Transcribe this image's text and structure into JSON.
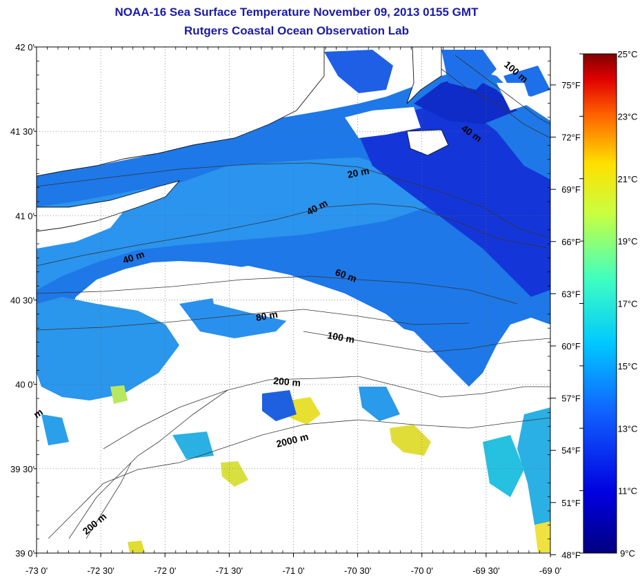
{
  "header": {
    "title": "NOAA-16 Sea Surface Temperature November 09, 2013 0155 GMT",
    "subtitle": "Rutgers Coastal Ocean Observation Lab"
  },
  "map": {
    "lon_ticks": [
      "-73 0'",
      "-72 30'",
      "-72 0'",
      "-71 30'",
      "-71 0'",
      "-70 30'",
      "-70 0'",
      "-69 30'",
      "-69 0'"
    ],
    "lat_ticks": [
      "42 0'",
      "41 30'",
      "41 0'",
      "40 30'",
      "40 0'",
      "39 30'",
      "39 0'"
    ],
    "lon_range": [
      -73,
      -69
    ],
    "lat_range": [
      39,
      42
    ],
    "contour_labels": [
      "20 m",
      "40 m",
      "40 m",
      "40 m",
      "60 m",
      "80 m",
      "100 m",
      "200 m",
      "2000 m",
      "200 m",
      "100 m",
      "m"
    ],
    "colors": {
      "land": "#ffffff",
      "cold": "#1030d8",
      "mid": "#1e78e8",
      "warm": "#22b8e0",
      "hot": "#e8e030"
    }
  },
  "colorbar": {
    "celsius": [
      "25°C",
      "23°C",
      "21°C",
      "19°C",
      "17°C",
      "15°C",
      "13°C",
      "11°C",
      "9°C"
    ],
    "fahrenheit": [
      "75°F",
      "72°F",
      "69°F",
      "66°F",
      "63°F",
      "60°F",
      "57°F",
      "54°F",
      "51°F",
      "48°F"
    ],
    "range_c": [
      9,
      25
    ]
  }
}
